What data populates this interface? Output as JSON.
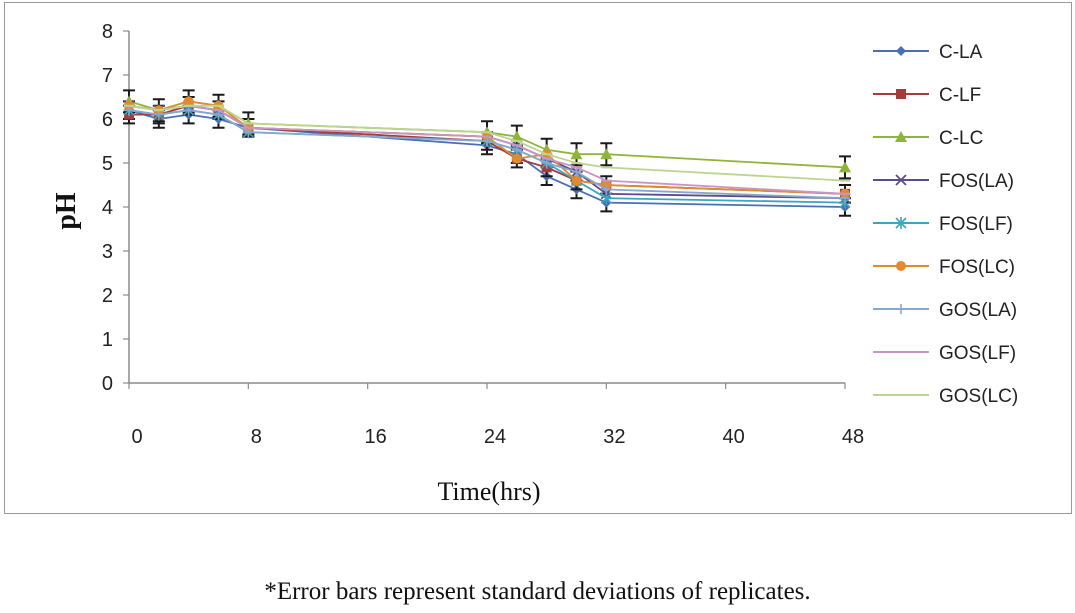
{
  "chart_data": {
    "type": "line",
    "title": "",
    "xlabel": "Time(hrs)",
    "ylabel": "pH",
    "xlim": [
      0,
      48
    ],
    "ylim": [
      0,
      8
    ],
    "xticks": [
      0,
      8,
      16,
      24,
      32,
      40,
      48
    ],
    "yticks": [
      0,
      1,
      2,
      3,
      4,
      5,
      6,
      7,
      8
    ],
    "grid": false,
    "legend_position": "right",
    "x": [
      0,
      2,
      4,
      6,
      8,
      24,
      26,
      28,
      30,
      32,
      48
    ],
    "series": [
      {
        "name": "C-LA",
        "color": "#4a6fb5",
        "marker": "diamond",
        "values": [
          6.2,
          6.0,
          6.1,
          6.0,
          5.8,
          5.4,
          5.2,
          4.7,
          4.4,
          4.1,
          4.0
        ],
        "error": 0.2
      },
      {
        "name": "C-LF",
        "color": "#a53b3b",
        "marker": "square",
        "values": [
          6.1,
          6.1,
          6.3,
          6.2,
          5.8,
          5.5,
          5.1,
          4.9,
          4.6,
          4.5,
          4.3
        ],
        "error": 0.2
      },
      {
        "name": "C-LC",
        "color": "#8eb43a",
        "marker": "triangle",
        "values": [
          6.4,
          6.2,
          6.4,
          6.3,
          5.9,
          5.7,
          5.6,
          5.3,
          5.2,
          5.2,
          4.9
        ],
        "error": 0.25
      },
      {
        "name": "FOS(LA)",
        "color": "#5e4a8e",
        "marker": "x",
        "values": [
          6.3,
          6.2,
          6.3,
          6.2,
          5.8,
          5.6,
          5.4,
          5.1,
          4.8,
          4.3,
          4.2
        ],
        "error": 0.2
      },
      {
        "name": "FOS(LF)",
        "color": "#3aa6c1",
        "marker": "star",
        "values": [
          6.2,
          6.1,
          6.2,
          6.1,
          5.7,
          5.5,
          5.3,
          5.0,
          4.6,
          4.2,
          4.1
        ],
        "error": 0.2
      },
      {
        "name": "FOS(LC)",
        "color": "#e28a2e",
        "marker": "circle",
        "values": [
          6.3,
          6.2,
          6.4,
          6.3,
          5.8,
          5.6,
          5.1,
          5.2,
          4.6,
          4.5,
          4.3
        ],
        "error": 0.2
      },
      {
        "name": "GOS(LA)",
        "color": "#86a8d0",
        "marker": "plus",
        "values": [
          6.2,
          6.1,
          6.2,
          6.1,
          5.7,
          5.5,
          5.3,
          5.0,
          4.8,
          4.4,
          4.2
        ],
        "error": 0.2
      },
      {
        "name": "GOS(LF)",
        "color": "#c895c4",
        "marker": "dash",
        "values": [
          6.3,
          6.2,
          6.3,
          6.2,
          5.8,
          5.6,
          5.4,
          5.1,
          4.9,
          4.6,
          4.3
        ],
        "error": 0.2
      },
      {
        "name": "GOS(LC)",
        "color": "#bcd48e",
        "marker": "dash",
        "values": [
          6.3,
          6.2,
          6.3,
          6.3,
          5.9,
          5.7,
          5.5,
          5.2,
          5.0,
          4.9,
          4.6
        ],
        "error": 0.2
      }
    ]
  },
  "footnote": "*Error bars represent standard deviations of replicates."
}
